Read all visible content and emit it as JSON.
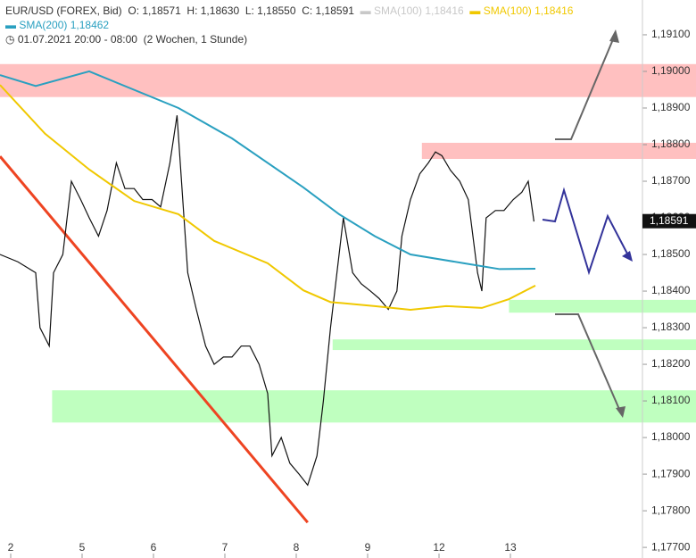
{
  "chart_data": {
    "type": "line",
    "title": "EUR/USD (FOREX, Bid)",
    "ohlc": {
      "o": "O: 1,18571",
      "h": "H: 1,18630",
      "l": "L: 1,18550",
      "c": "C: 1,18591"
    },
    "legend_sma100_gray": {
      "name": "SMA(100)",
      "value": "1,18416",
      "color": "#c8c8c8"
    },
    "legend_sma100": {
      "name": "SMA(100)",
      "value": "1,18416"
    },
    "legend_sma200": {
      "name": "SMA(200)",
      "value": "1,18462"
    },
    "period": "01.07.2021 20:00 - 08:00",
    "interval": "(2 Wochen, 1 Stunde)",
    "last_price": {
      "value": 1.18591,
      "label": "1,18591"
    },
    "xlim": [
      -0.15,
      9.6
    ],
    "ylim": [
      1.17671,
      1.19195
    ],
    "xticks": [
      {
        "value": 0,
        "label": "2"
      },
      {
        "value": 1,
        "label": "5"
      },
      {
        "value": 2,
        "label": "6"
      },
      {
        "value": 3,
        "label": "7"
      },
      {
        "value": 4,
        "label": "8"
      },
      {
        "value": 5,
        "label": "9"
      },
      {
        "value": 6,
        "label": "12"
      },
      {
        "value": 7,
        "label": "13"
      }
    ],
    "yticks": [
      {
        "value": 1.177,
        "label": "1,17700"
      },
      {
        "value": 1.178,
        "label": "1,17800"
      },
      {
        "value": 1.179,
        "label": "1,17900"
      },
      {
        "value": 1.18,
        "label": "1,18000"
      },
      {
        "value": 1.181,
        "label": "1,18100"
      },
      {
        "value": 1.182,
        "label": "1,18200"
      },
      {
        "value": 1.183,
        "label": "1,18300"
      },
      {
        "value": 1.184,
        "label": "1,18400"
      },
      {
        "value": 1.185,
        "label": "1,18500"
      },
      {
        "value": 1.186,
        "label": "1,18600"
      },
      {
        "value": 1.187,
        "label": "1,18700"
      },
      {
        "value": 1.188,
        "label": "1,18800"
      },
      {
        "value": 1.189,
        "label": "1,18900"
      },
      {
        "value": 1.19,
        "label": "1,19000"
      },
      {
        "value": 1.191,
        "label": "1,19100"
      }
    ],
    "zones": [
      {
        "color": "#ffc0c0",
        "x0": -0.15,
        "y": [
          1.1902,
          1.1893
        ]
      },
      {
        "color": "#ffc0c0",
        "x0": 5.76,
        "y": [
          1.18805,
          1.18761
        ]
      },
      {
        "color": "#bfffbf",
        "x0": 6.98,
        "y": [
          1.18376,
          1.18341
        ]
      },
      {
        "color": "#bfffbf",
        "x0": 4.51,
        "y": [
          1.18268,
          1.18239
        ]
      },
      {
        "color": "#bfffbf",
        "x0": 0.58,
        "y": [
          1.18129,
          1.18041
        ]
      }
    ],
    "trendline": {
      "color": "#ee4422",
      "x": [
        -0.15,
        4.16
      ],
      "values": [
        1.18768,
        1.17768
      ]
    },
    "series": [
      {
        "name": "Kurs",
        "color": "#111111",
        "x": [
          -0.15,
          0.1,
          0.35,
          0.41,
          0.54,
          0.6,
          0.73,
          0.85,
          0.98,
          1.1,
          1.23,
          1.35,
          1.48,
          1.6,
          1.73,
          1.85,
          1.98,
          2.1,
          2.23,
          2.33,
          2.41,
          2.48,
          2.6,
          2.73,
          2.85,
          2.98,
          3.1,
          3.23,
          3.35,
          3.48,
          3.6,
          3.66,
          3.79,
          3.91,
          4.04,
          4.16,
          4.29,
          4.38,
          4.48,
          4.6,
          4.66,
          4.79,
          4.91,
          5.04,
          5.16,
          5.29,
          5.41,
          5.48,
          5.6,
          5.73,
          5.85,
          5.95,
          6.04,
          6.16,
          6.29,
          6.41,
          6.54,
          6.6,
          6.66,
          6.79,
          6.91,
          7.04,
          7.16,
          7.25,
          7.33
        ],
        "values": [
          1.185,
          1.1848,
          1.1845,
          1.183,
          1.1825,
          1.1845,
          1.185,
          1.187,
          1.1865,
          1.186,
          1.1855,
          1.1862,
          1.1875,
          1.1868,
          1.1868,
          1.1865,
          1.1865,
          1.1863,
          1.1875,
          1.1888,
          1.1865,
          1.1845,
          1.1835,
          1.1825,
          1.182,
          1.1822,
          1.1822,
          1.1825,
          1.1825,
          1.182,
          1.1812,
          1.1795,
          1.18,
          1.1793,
          1.179,
          1.1787,
          1.1795,
          1.181,
          1.183,
          1.185,
          1.186,
          1.1845,
          1.1842,
          1.184,
          1.1838,
          1.1835,
          1.184,
          1.1855,
          1.1865,
          1.1872,
          1.1875,
          1.1878,
          1.1877,
          1.1873,
          1.187,
          1.1865,
          1.1845,
          1.184,
          1.186,
          1.1862,
          1.1862,
          1.1865,
          1.1867,
          1.187,
          1.1859
        ]
      },
      {
        "name": "SMA(200)",
        "color": "#2aa0c0",
        "x": [
          -0.15,
          0.35,
          1.1,
          2.35,
          3.1,
          4.1,
          4.6,
          5.1,
          5.6,
          6.35,
          6.85,
          7.35
        ],
        "values": [
          1.1899,
          1.1896,
          1.19,
          1.189,
          1.18817,
          1.18683,
          1.1861,
          1.1855,
          1.185,
          1.18476,
          1.1846,
          1.18461
        ]
      },
      {
        "name": "SMA(100)",
        "color": "#f0c800",
        "x": [
          -0.15,
          0.48,
          1.1,
          1.73,
          2.35,
          2.85,
          3.6,
          4.1,
          4.48,
          5.1,
          5.6,
          6.1,
          6.6,
          6.98,
          7.35
        ],
        "values": [
          1.18963,
          1.1883,
          1.18732,
          1.18646,
          1.1861,
          1.18537,
          1.18476,
          1.18402,
          1.1837,
          1.18359,
          1.18349,
          1.18359,
          1.18354,
          1.18378,
          1.18415
        ]
      }
    ]
  }
}
